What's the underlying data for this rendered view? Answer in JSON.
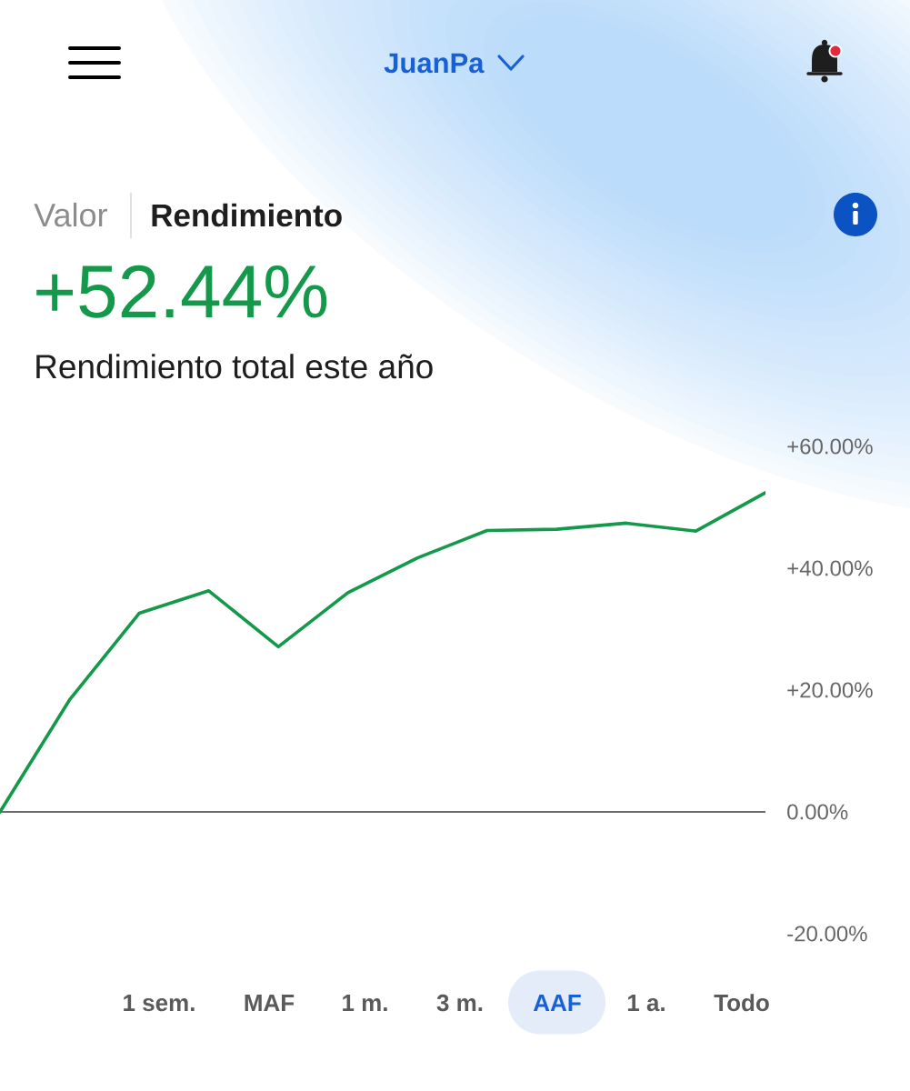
{
  "chart_data": {
    "type": "line",
    "title": "+52.44%",
    "subtitle": "Rendimiento total este año",
    "annotations": [
      "JuanPa",
      "Valor",
      "Rendimiento",
      "1 sem.",
      "MAF",
      "1 m.",
      "3 m.",
      "AAF",
      "1 a.",
      "Todo"
    ],
    "categories": [
      null,
      null,
      null,
      null,
      null,
      null,
      null,
      null,
      null,
      null,
      null,
      null
    ],
    "series": [
      {
        "color": "#14994b",
        "values": [
          0,
          18.4,
          32.6,
          36.3,
          27.1,
          36.0,
          41.7,
          46.2,
          46.4,
          47.4,
          46.1,
          52.4
        ]
      }
    ],
    "ylim": [
      -20,
      60
    ],
    "yticks": [
      {
        "value": -20,
        "label": "-20.00%"
      },
      {
        "value": 0,
        "label": "0.00%"
      },
      {
        "value": 20,
        "label": "+20.00%"
      },
      {
        "value": 40,
        "label": "+40.00%"
      },
      {
        "value": 60,
        "label": "+60.00%"
      }
    ],
    "tick_labels": "y",
    "ref_lines": [
      {
        "axis": "y",
        "value": 0,
        "color": "#6b6b6b"
      }
    ]
  }
}
